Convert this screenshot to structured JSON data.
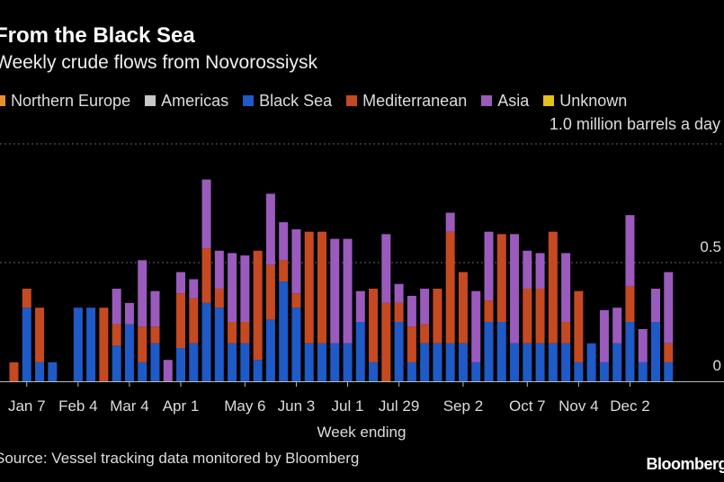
{
  "title": "From the Black Sea",
  "subtitle": "Weekly crude flows from Novorossiysk",
  "unit_label": "1.0 million barrels a day",
  "source": "Source: Vessel tracking data monitored by Bloomberg",
  "logo_text": "Bloomberg",
  "colors": {
    "Northern Europe": "#e8902c",
    "Americas": "#c8c8c8",
    "Black Sea": "#1f5ac6",
    "Mediterranean": "#c54a22",
    "Asia": "#9a5bbc",
    "Unknown": "#e2c11a"
  },
  "chart_data": {
    "type": "bar",
    "stacked": true,
    "title": "From the Black Sea",
    "subtitle": "Weekly crude flows from Novorossiysk",
    "xlabel": "Week ending",
    "ylabel": "",
    "unit": "1.0 million barrels a day",
    "ylim": [
      0,
      1.0
    ],
    "y_ticks": [
      0,
      0.5
    ],
    "y_tick_labels": [
      "0",
      "0.5"
    ],
    "x_tick_labels": [
      "Jan 7",
      "Feb 4",
      "Mar 4",
      "Apr 1",
      "May 6",
      "Jun 3",
      "Jul 1",
      "Jul 29",
      "Sep 2",
      "Oct 7",
      "Nov 4",
      "Dec 2"
    ],
    "x_tick_positions": [
      1,
      5,
      9,
      13,
      18,
      22,
      26,
      30,
      35,
      40,
      44,
      48
    ],
    "legend": [
      "Northern Europe",
      "Americas",
      "Black Sea",
      "Mediterranean",
      "Asia",
      "Unknown"
    ],
    "legend_position": "top",
    "grid": true,
    "series": [
      {
        "name": "Black Sea",
        "values": [
          0,
          0.31,
          0.08,
          0.08,
          0,
          0.31,
          0.31,
          0,
          0.15,
          0.24,
          0.08,
          0.16,
          0,
          0.14,
          0.16,
          0.33,
          0.31,
          0.16,
          0.16,
          0.09,
          0.26,
          0.42,
          0.31,
          0.16,
          0.16,
          0.16,
          0.16,
          0.25,
          0.08,
          0,
          0.25,
          0.08,
          0.16,
          0.16,
          0.16,
          0.16,
          0.08,
          0.25,
          0.25,
          0.16,
          0.16,
          0.16,
          0.16,
          0.16,
          0.08,
          0.16,
          0.08,
          0.16,
          0.25,
          0.08,
          0.25,
          0.08
        ]
      },
      {
        "name": "Mediterranean",
        "values": [
          0.08,
          0.08,
          0.23,
          0,
          0,
          0,
          0,
          0.31,
          0.09,
          0,
          0.15,
          0.07,
          0,
          0.23,
          0.19,
          0.23,
          0.08,
          0.09,
          0.09,
          0.46,
          0.23,
          0.09,
          0.06,
          0.47,
          0.47,
          0,
          0,
          0,
          0.31,
          0.33,
          0.08,
          0.15,
          0.08,
          0.23,
          0.47,
          0.3,
          0,
          0.09,
          0.37,
          0,
          0.23,
          0.23,
          0.47,
          0.09,
          0.3,
          0,
          0,
          0,
          0.15,
          0,
          0,
          0.08
        ]
      },
      {
        "name": "Asia",
        "values": [
          0,
          0,
          0,
          0,
          0,
          0,
          0,
          0,
          0.15,
          0.09,
          0.28,
          0.15,
          0.09,
          0.09,
          0.08,
          0.29,
          0.16,
          0.29,
          0.28,
          0,
          0.3,
          0.16,
          0.27,
          0,
          0,
          0.44,
          0.44,
          0.13,
          0,
          0.29,
          0.08,
          0.13,
          0.15,
          0,
          0.08,
          0,
          0.3,
          0.29,
          0,
          0.46,
          0.16,
          0.15,
          0,
          0.29,
          0,
          0,
          0.22,
          0.15,
          0.3,
          0.14,
          0.14,
          0.3
        ]
      }
    ]
  }
}
